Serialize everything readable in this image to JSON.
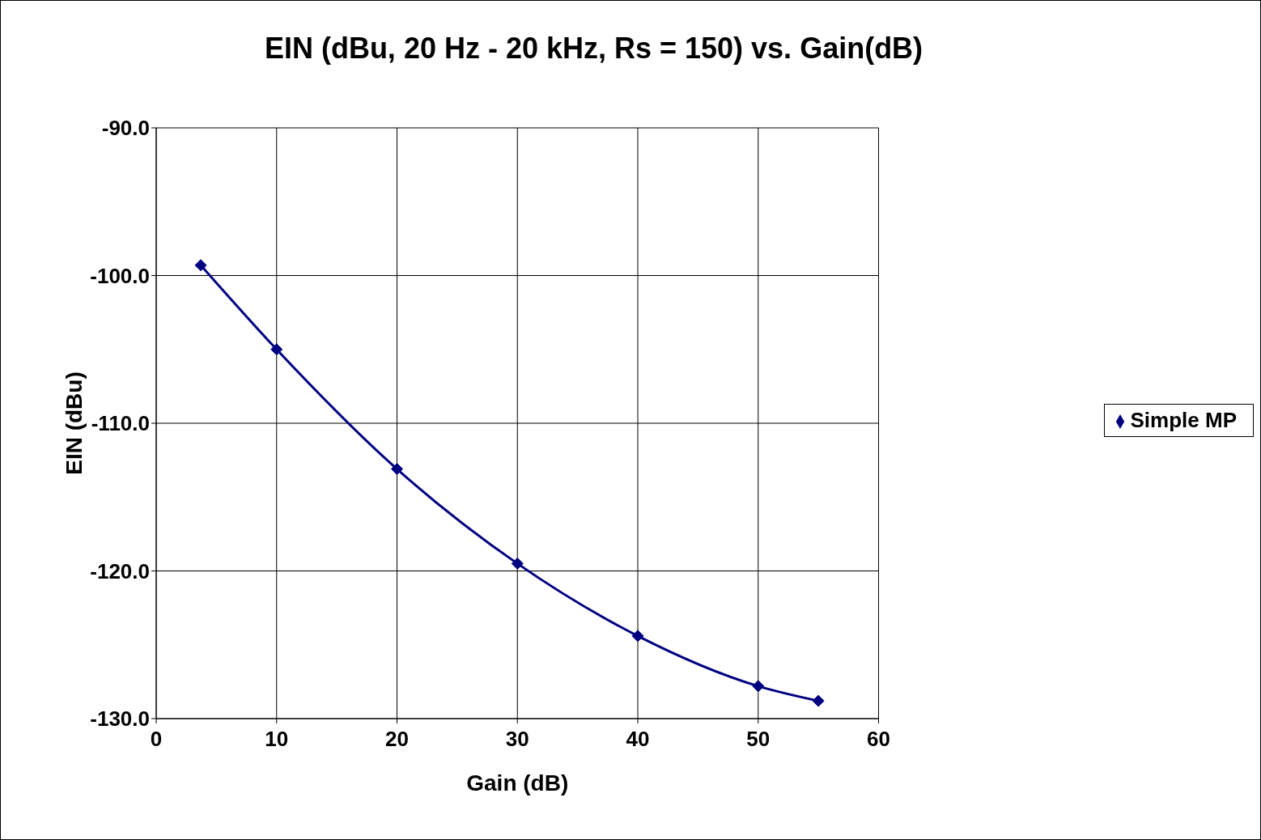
{
  "chart_data": {
    "type": "line",
    "title": "EIN (dBu, 20 Hz - 20 kHz, Rs = 150) vs. Gain(dB)",
    "xlabel": "Gain (dB)",
    "ylabel": "EIN (dBu)",
    "x": [
      3.7,
      10,
      20,
      30,
      40,
      50,
      55
    ],
    "series": [
      {
        "name": "Simple MP",
        "color": "#000080",
        "values": [
          -99.3,
          -105.0,
          -113.1,
          -119.5,
          -124.4,
          -127.8,
          -128.8
        ]
      }
    ],
    "xlim": [
      0,
      60
    ],
    "xticks": [
      0,
      10,
      20,
      30,
      40,
      50,
      60
    ],
    "ylim": [
      -130,
      -90
    ],
    "yticks": [
      {
        "value": -130,
        "label": "-130.0"
      },
      {
        "value": -120,
        "label": "-120.0"
      },
      {
        "value": -110,
        "label": "-110.0"
      },
      {
        "value": -100,
        "label": "-100.0"
      },
      {
        "value": -90,
        "label": "-90.0"
      }
    ],
    "grid": true,
    "legend": "right",
    "marker": "diamond",
    "line_style": "solid"
  }
}
